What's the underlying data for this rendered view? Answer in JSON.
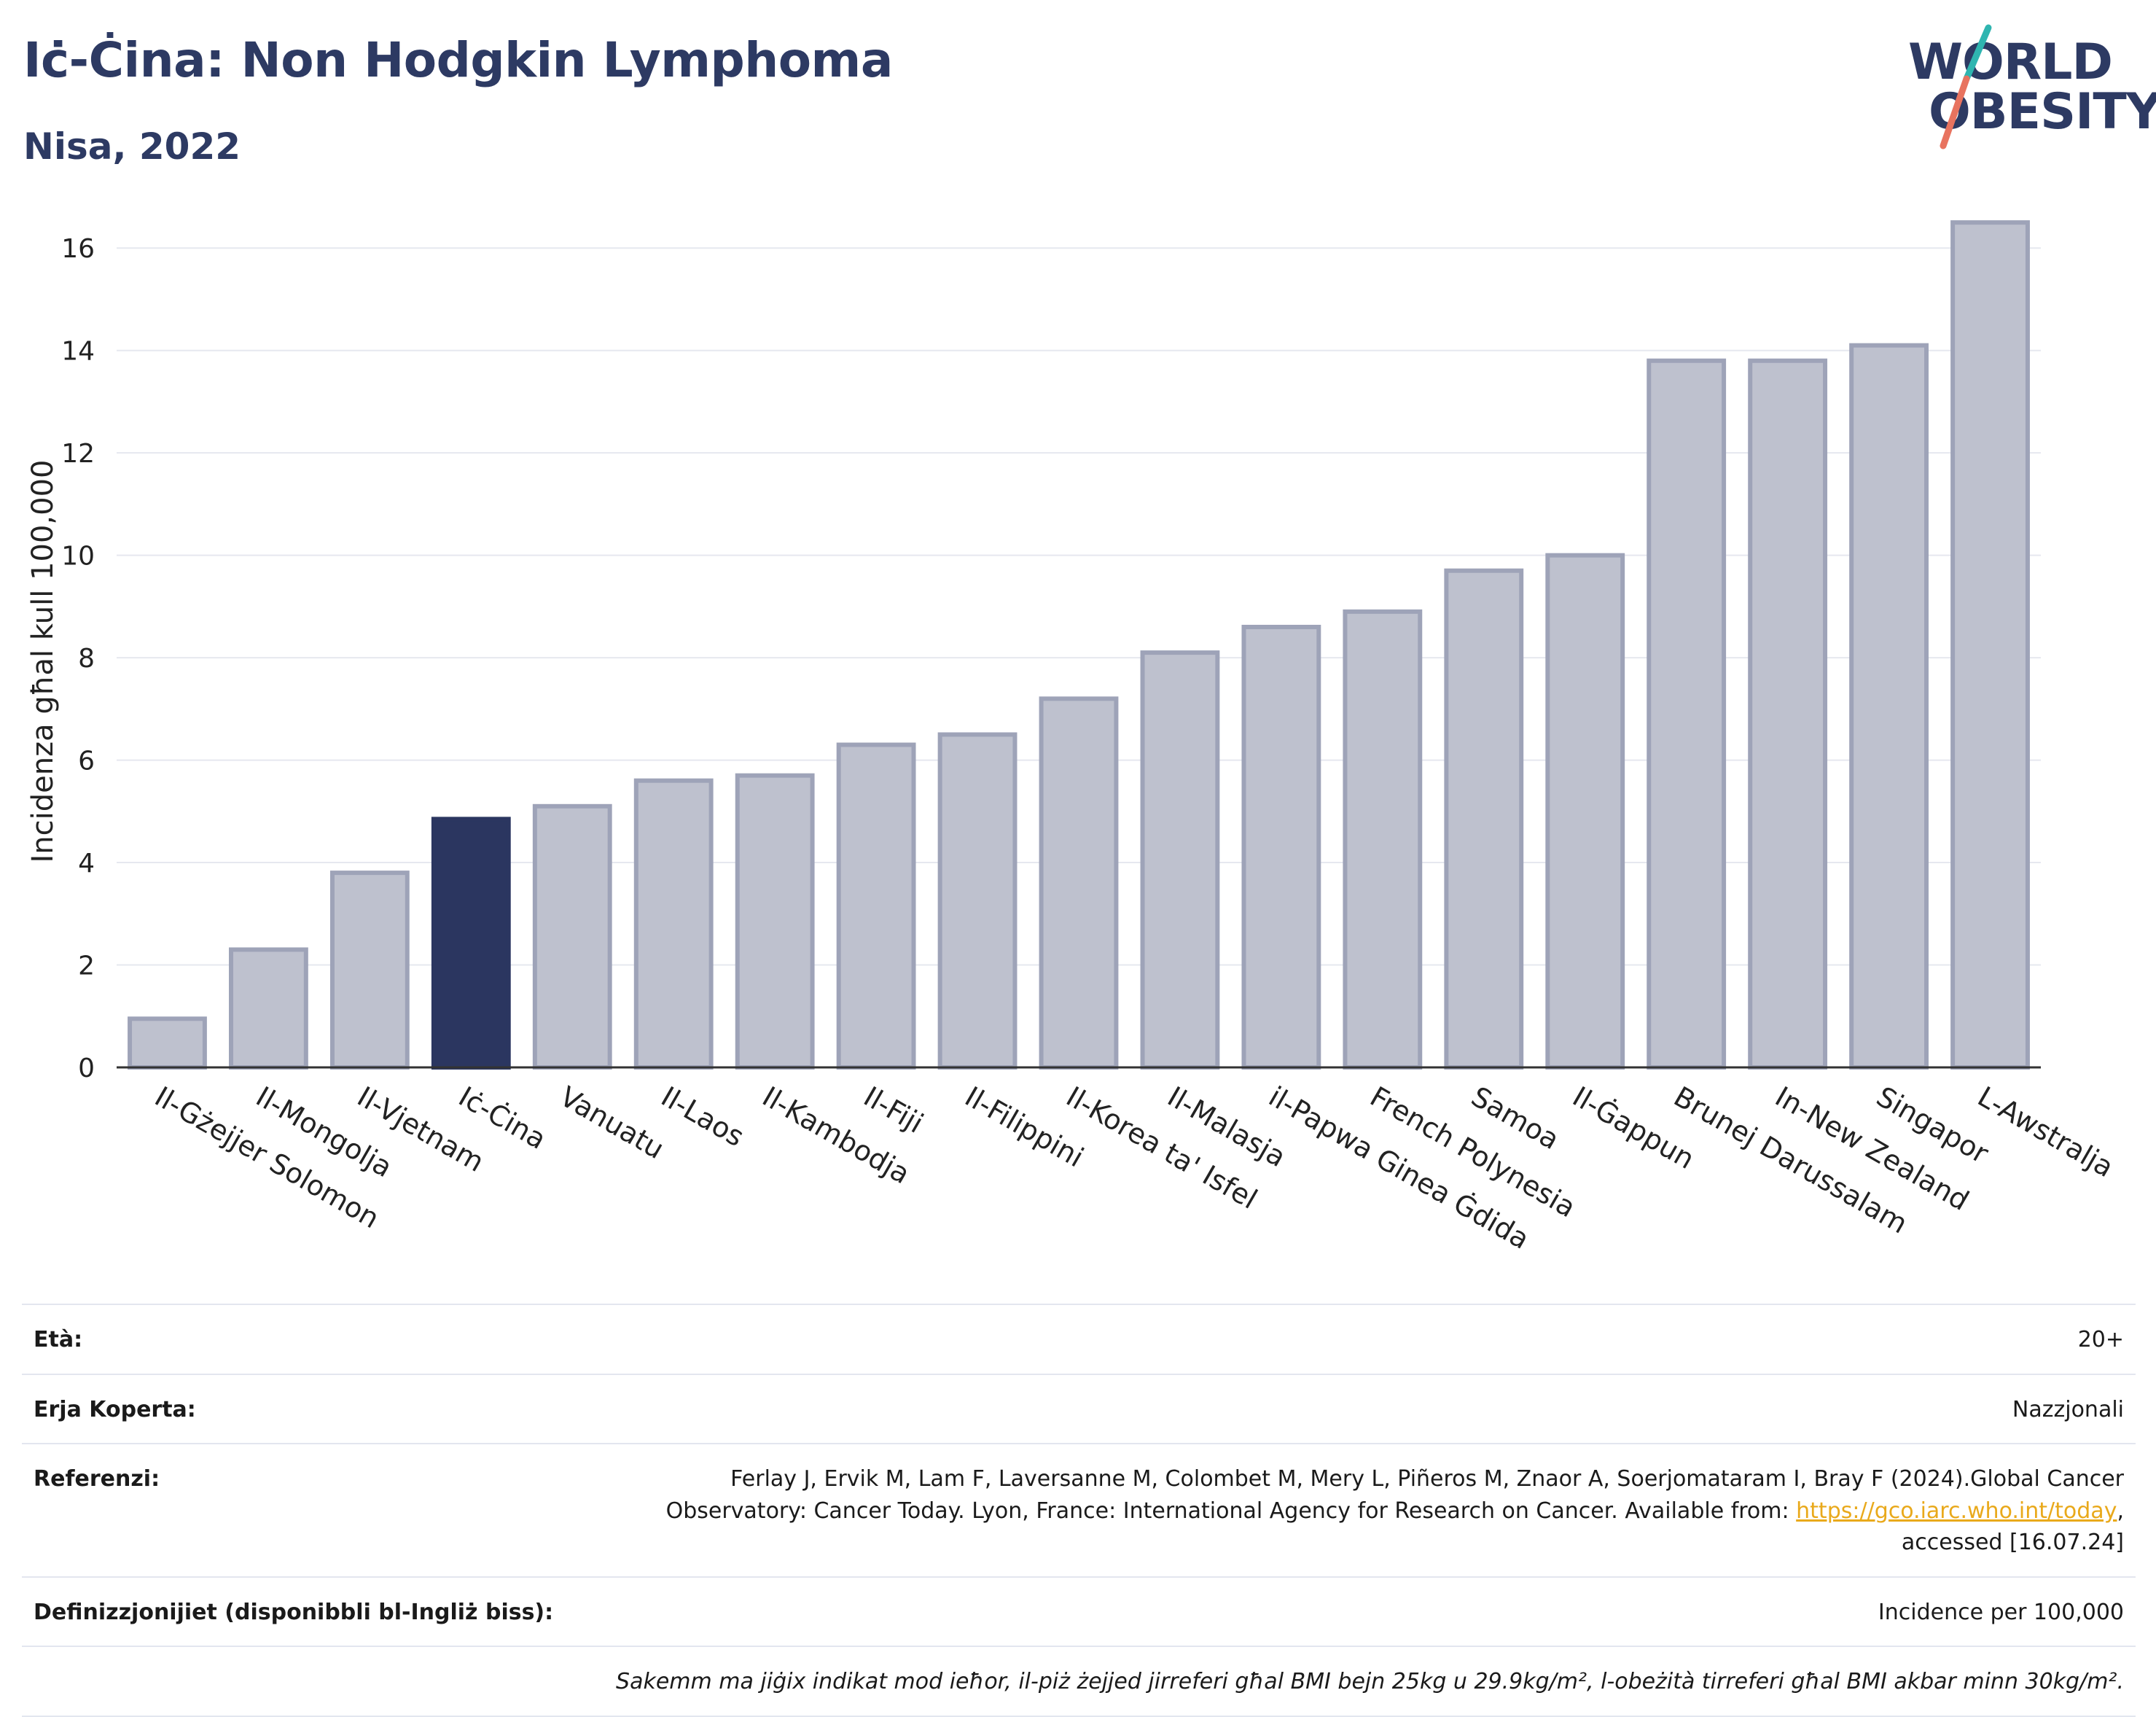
{
  "header": {
    "title": "Iċ-Ċina: Non Hodgkin Lymphoma",
    "subtitle": "Nisa, 2022"
  },
  "logo": {
    "line1": "WORLD",
    "line2": "OBESITY"
  },
  "colors": {
    "highlight": "#2b3660",
    "bar": "#bec1ce",
    "bar_edge": "#9ea3b8",
    "text_dark": "#2d3a63"
  },
  "chart_data": {
    "type": "bar",
    "categories": [
      "Il-Gżejjer Solomon",
      "Il-Mongolja",
      "Il-Vjetnam",
      "Iċ-Ċina",
      "Vanuatu",
      "Il-Laos",
      "Il-Kambodja",
      "Il-Fiji",
      "Il-Filippini",
      "Il-Korea ta' Isfel",
      "Il-Malasja",
      "il-Papwa Ginea Ġdida",
      "French Polynesia",
      "Samoa",
      "Il-Ġappun",
      "Brunej Darussalam",
      "In-New Zealand",
      "Singapor",
      "L-Awstralja"
    ],
    "values": [
      0.95,
      2.3,
      3.8,
      4.85,
      5.1,
      5.6,
      5.7,
      6.3,
      6.5,
      7.2,
      8.1,
      8.6,
      8.9,
      9.7,
      10.0,
      13.8,
      13.8,
      14.1,
      16.5
    ],
    "highlight_index": 3,
    "ylabel": "Incidenza għal kull 100,000",
    "xlabel": "",
    "ylim": [
      0,
      17
    ],
    "yticks": [
      0,
      2,
      4,
      6,
      8,
      10,
      12,
      14,
      16
    ],
    "grid": true
  },
  "info": {
    "age_label": "Età:",
    "age_value": "20+",
    "area_label": "Erja Koperta:",
    "area_value": "Nazzjonali",
    "ref_label": "Referenzi:",
    "ref_text1": "Ferlay J, Ervik M, Lam F, Laversanne M, Colombet M, Mery L, Piñeros M, Znaor A, Soerjomataram I, Bray F (2024).Global Cancer",
    "ref_text2": "Observatory: Cancer Today. Lyon, France: International Agency for Research on Cancer. Available from: ",
    "ref_link": "https://gco.iarc.who.int/today",
    "ref_text3": ",",
    "ref_text4": "accessed [16.07.24]",
    "def_label": "Definizzjonijiet (disponibbli bl-Ingliż biss):",
    "def_value": "Incidence per 100,000",
    "note": "Sakemm ma jiġix indikat mod ieħor, il-piż żejjed jirreferi għal BMI bejn 25kg u 29.9kg/m², l-obeżità tirreferi għal BMI akbar minn 30kg/m²."
  }
}
